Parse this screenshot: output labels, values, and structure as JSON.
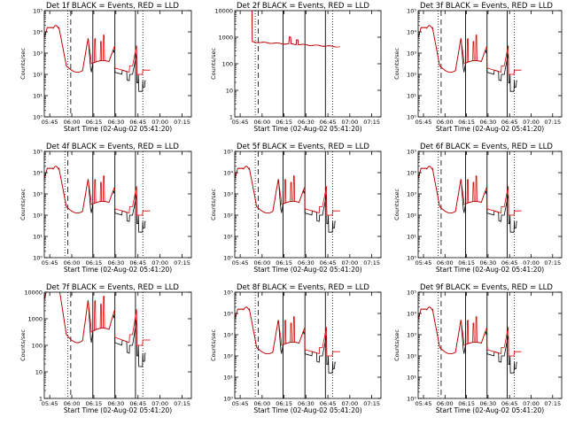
{
  "figure": {
    "background": "#ffffff",
    "colors": {
      "events": "#000000",
      "lld": "#dd0000"
    },
    "xlabel": "Start Time (02-Aug-02 05:41:20)",
    "ylabel": "Counts/sec",
    "xticks": [
      "05:45",
      "06:00",
      "06:15",
      "06:30",
      "06:45",
      "07:00",
      "07:15"
    ]
  },
  "chart_data": [
    {
      "type": "line",
      "title": "Det 1f BLACK = Events, RED = LLD",
      "yscale": "log",
      "ylim": [
        1,
        100000
      ],
      "yticks": [
        "10⁰",
        "10¹",
        "10²",
        "10³",
        "10⁴",
        "10⁵"
      ],
      "xlim_min": [
        0,
        100
      ],
      "series": [
        {
          "name": "Events",
          "color": "#000000"
        },
        {
          "name": "LLD",
          "color": "#dd0000"
        }
      ]
    },
    {
      "type": "line",
      "title": "Det 2f BLACK = Events, RED = LLD",
      "yscale": "log",
      "ylim": [
        1,
        10000
      ],
      "yticks": [
        "1",
        "10",
        "100",
        "1000",
        "10000"
      ],
      "xlim_min": [
        0,
        100
      ],
      "series": [
        {
          "name": "Events",
          "color": "#000000"
        },
        {
          "name": "LLD",
          "color": "#dd0000"
        }
      ]
    },
    {
      "type": "line",
      "title": "Det 3f BLACK = Events, RED = LLD",
      "yscale": "log",
      "ylim": [
        1,
        100000
      ],
      "yticks": [
        "10⁰",
        "10¹",
        "10²",
        "10³",
        "10⁴",
        "10⁵"
      ],
      "xlim_min": [
        0,
        100
      ],
      "series": [
        {
          "name": "Events",
          "color": "#000000"
        },
        {
          "name": "LLD",
          "color": "#dd0000"
        }
      ]
    },
    {
      "type": "line",
      "title": "Det 4f BLACK = Events, RED = LLD",
      "yscale": "log",
      "ylim": [
        1,
        100000
      ],
      "yticks": [
        "10⁰",
        "10¹",
        "10²",
        "10³",
        "10⁴",
        "10⁵"
      ],
      "xlim_min": [
        0,
        100
      ],
      "series": [
        {
          "name": "Events",
          "color": "#000000"
        },
        {
          "name": "LLD",
          "color": "#dd0000"
        }
      ]
    },
    {
      "type": "line",
      "title": "Det 5f BLACK = Events, RED = LLD",
      "yscale": "log",
      "ylim": [
        1,
        100000
      ],
      "yticks": [
        "10⁰",
        "10¹",
        "10²",
        "10³",
        "10⁴",
        "10⁵"
      ],
      "xlim_min": [
        0,
        100
      ],
      "series": [
        {
          "name": "Events",
          "color": "#000000"
        },
        {
          "name": "LLD",
          "color": "#dd0000"
        }
      ]
    },
    {
      "type": "line",
      "title": "Det 6f BLACK = Events, RED = LLD",
      "yscale": "log",
      "ylim": [
        1,
        100000
      ],
      "yticks": [
        "10⁰",
        "10¹",
        "10²",
        "10³",
        "10⁴",
        "10⁵"
      ],
      "xlim_min": [
        0,
        100
      ],
      "series": [
        {
          "name": "Events",
          "color": "#000000"
        },
        {
          "name": "LLD",
          "color": "#dd0000"
        }
      ]
    },
    {
      "type": "line",
      "title": "Det 7f BLACK = Events, RED = LLD",
      "yscale": "log",
      "ylim": [
        1,
        10000
      ],
      "yticks": [
        "1",
        "10",
        "100",
        "1000",
        "10000"
      ],
      "xlim_min": [
        0,
        100
      ],
      "series": [
        {
          "name": "Events",
          "color": "#000000"
        },
        {
          "name": "LLD",
          "color": "#dd0000"
        }
      ]
    },
    {
      "type": "line",
      "title": "Det 8f BLACK = Events, RED = LLD",
      "yscale": "log",
      "ylim": [
        1,
        100000
      ],
      "yticks": [
        "10⁰",
        "10¹",
        "10²",
        "10³",
        "10⁴",
        "10⁵"
      ],
      "xlim_min": [
        0,
        100
      ],
      "series": [
        {
          "name": "Events",
          "color": "#000000"
        },
        {
          "name": "LLD",
          "color": "#dd0000"
        }
      ]
    },
    {
      "type": "line",
      "title": "Det 9f BLACK = Events, RED = LLD",
      "yscale": "log",
      "ylim": [
        1,
        100000
      ],
      "yticks": [
        "10⁰",
        "10¹",
        "10²",
        "10³",
        "10⁴",
        "10⁵"
      ],
      "xlim_min": [
        0,
        100
      ],
      "series": [
        {
          "name": "Events",
          "color": "#000000"
        },
        {
          "name": "LLD",
          "color": "#dd0000"
        }
      ]
    }
  ]
}
